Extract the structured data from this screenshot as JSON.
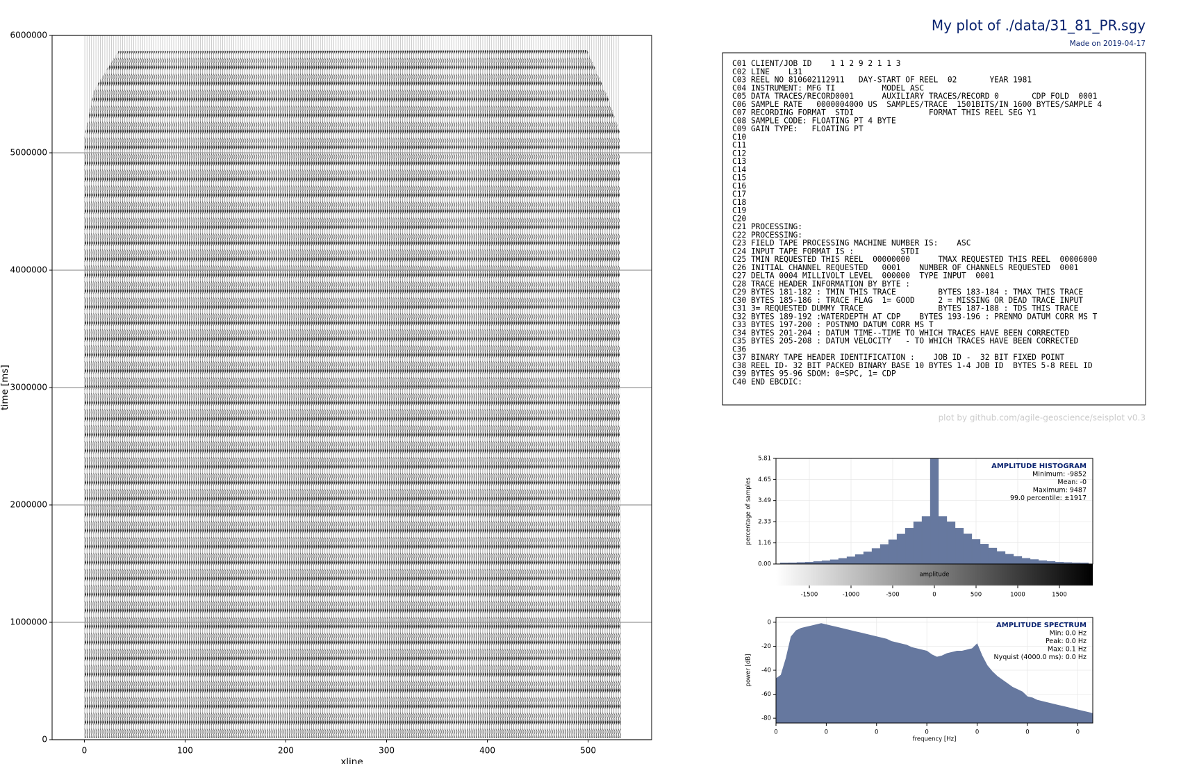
{
  "title": "My plot of ./data/31_81_PR.sgy",
  "subtitle": "Made on 2019-04-17",
  "credit": "plot by github.com/agile-geoscience/seisplot v0.3",
  "header_lines": [
    "C01 CLIENT/JOB ID    1 1 2 9 2 1 1 3",
    "C02 LINE    L31",
    "C03 REEL NO 810602112911   DAY-START OF REEL  02       YEAR 1981",
    "C04 INSTRUMENT: MFG TI          MODEL ASC",
    "C05 DATA TRACES/RECORD0001      AUXILIARY TRACES/RECORD 0       CDP FOLD  0001",
    "C06 SAMPLE RATE   0000004000 US  SAMPLES/TRACE  1501BITS/IN 1600 BYTES/SAMPLE 4",
    "C07 RECORDING FORMAT  STDI                FORMAT THIS REEL SEG Y1",
    "C08 SAMPLE CODE: FLOATING PT 4 BYTE",
    "C09 GAIN TYPE:   FLOATING PT",
    "C10",
    "C11",
    "C12",
    "C13",
    "C14",
    "C15",
    "C16",
    "C17",
    "C18",
    "C19",
    "C20",
    "C21 PROCESSING:",
    "C22 PROCESSING:",
    "C23 FIELD TAPE PROCESSING MACHINE NUMBER IS:    ASC",
    "C24 INPUT TAPE FORMAT IS :          STDI",
    "C25 TMIN REQUESTED THIS REEL  00000000      TMAX REQUESTED THIS REEL  00006000",
    "C26 INITIAL CHANNEL REQUESTED   0001    NUMBER OF CHANNELS REQUESTED  0001",
    "C27 DELTA 0004 MILLIVOLT LEVEL  000000  TYPE INPUT  0001",
    "C28 TRACE HEADER INFORMATION BY BYTE :",
    "C29 BYTES 181-182 : TMIN THIS TRACE         BYTES 183-184 : TMAX THIS TRACE",
    "C30 BYTES 185-186 : TRACE FLAG  1= GOOD     2 = MISSING OR DEAD TRACE INPUT",
    "C31 3= REQUESTED DUMMY TRACE                BYTES 187-188 : TDS THIS TRACE",
    "C32 BYTES 189-192 :WATERDEPTH AT CDP    BYTES 193-196 : PRENMO DATUM CORR MS T",
    "C33 BYTES 197-200 : POSTNMO DATUM CORR MS T",
    "C34 BYTES 201-204 : DATUM TIME--TIME TO WHICH TRACES HAVE BEEN CORRECTED",
    "C35 BYTES 205-208 : DATUM VELOCITY   - TO WHICH TRACES HAVE BEEN CORRECTED",
    "C36",
    "C37 BINARY TAPE HEADER IDENTIFICATION :    JOB ID -  32 BIT FIXED POINT",
    "C38 REEL ID- 32 BIT PACKED BINARY BASE 10 BYTES 1-4 JOB ID  BYTES 5-8 REEL ID",
    "C39 BYTES 95-96 SDOM: 0=SPC, 1= CDP",
    "C40 END EBCDIC:"
  ],
  "chart_data": [
    {
      "type": "seismic",
      "xlabel": "xline",
      "ylabel": "time [ms]",
      "xlim": [
        -32,
        563
      ],
      "xticks": [
        0,
        100,
        200,
        300,
        400,
        500
      ],
      "ylim": [
        0,
        6000000
      ],
      "yticks": [
        0,
        1000000,
        2000000,
        3000000,
        4000000,
        5000000,
        6000000
      ],
      "grid": true
    },
    {
      "type": "histogram",
      "title": "AMPLITUDE HISTOGRAM",
      "annotations": [
        "Minimum: -9852",
        "Mean:   -0",
        "Maximum: 9487",
        "99.0 percentile: ±1917"
      ],
      "ylabel": "percentage of samples",
      "colorbar_label": "amplitude",
      "color": "#66789f",
      "xlim": [
        -1900,
        1900
      ],
      "xticks": [
        -1500,
        -1000,
        -500,
        0,
        500,
        1000,
        1500
      ],
      "ylim": [
        0,
        5.81
      ],
      "yticks": [
        {
          "value": 0,
          "label": "0.00"
        },
        {
          "value": 1.16,
          "label": "1.16"
        },
        {
          "value": 2.33,
          "label": "2.33"
        },
        {
          "value": 3.49,
          "label": "3.49"
        },
        {
          "value": 4.65,
          "label": "4.65"
        },
        {
          "value": 5.81,
          "label": "5.81"
        }
      ],
      "grid": true,
      "bins": [
        -1850,
        -1750,
        -1650,
        -1550,
        -1450,
        -1350,
        -1250,
        -1150,
        -1050,
        -950,
        -850,
        -750,
        -650,
        -550,
        -450,
        -350,
        -250,
        -150,
        -50,
        50,
        150,
        250,
        350,
        450,
        550,
        650,
        750,
        850,
        950,
        1050,
        1150,
        1250,
        1350,
        1450,
        1550,
        1650,
        1750,
        1850
      ],
      "values": [
        0.06,
        0.07,
        0.09,
        0.11,
        0.14,
        0.18,
        0.24,
        0.31,
        0.4,
        0.52,
        0.67,
        0.86,
        1.08,
        1.34,
        1.65,
        1.98,
        2.33,
        2.62,
        5.81,
        2.62,
        2.33,
        1.98,
        1.66,
        1.36,
        1.1,
        0.88,
        0.69,
        0.54,
        0.42,
        0.32,
        0.25,
        0.19,
        0.15,
        0.11,
        0.09,
        0.07,
        0.06
      ]
    },
    {
      "type": "area",
      "title": "AMPLITUDE SPECTRUM",
      "annotations": [
        "Min: 0.0 Hz",
        "Peak: 0.0 Hz",
        "Max: 0.1 Hz",
        "Nyquist (4000.0 ms): 0.0 Hz"
      ],
      "xlabel": "frequency [Hz]",
      "ylabel": "power [dB]",
      "color": "#66789f",
      "xlim": [
        0,
        63
      ],
      "xticks": [
        0,
        {
          "value": 10,
          "label": "0"
        },
        {
          "value": 20,
          "label": "0"
        },
        {
          "value": 30,
          "label": "0"
        },
        {
          "value": 40,
          "label": "0"
        },
        {
          "value": 50,
          "label": "0"
        },
        {
          "value": 60,
          "label": "0"
        }
      ],
      "ylim": [
        -84,
        4
      ],
      "yticks": [
        0,
        -20,
        -40,
        -60,
        -80
      ],
      "grid": true,
      "x": [
        0,
        1,
        2,
        3,
        4,
        5,
        6,
        7,
        8,
        9,
        10,
        11,
        12,
        13,
        14,
        15,
        16,
        17,
        18,
        19,
        20,
        21,
        22,
        23,
        24,
        25,
        26,
        27,
        28,
        29,
        30,
        31,
        32,
        33,
        34,
        35,
        36,
        37,
        38,
        39,
        40,
        41,
        42,
        43,
        44,
        45,
        46,
        47,
        48,
        49,
        50,
        51,
        52,
        53,
        54,
        55,
        56,
        57,
        58,
        59,
        60,
        61,
        62,
        63
      ],
      "values": [
        -47,
        -44,
        -30,
        -12,
        -7,
        -5,
        -4,
        -3,
        -2,
        -1,
        -2,
        -3,
        -4,
        -5,
        -6,
        -7,
        -8,
        -9,
        -10,
        -11,
        -12,
        -13,
        -14,
        -16,
        -17,
        -18,
        -19,
        -21,
        -22,
        -23,
        -24,
        -27,
        -29,
        -28,
        -26,
        -25,
        -24,
        -24,
        -23,
        -22,
        -18,
        -28,
        -36,
        -41,
        -45,
        -48,
        -51,
        -54,
        -56,
        -58,
        -62,
        -63,
        -65,
        -66,
        -67,
        -68,
        -69,
        -70,
        -71,
        -72,
        -73,
        -74,
        -75,
        -76
      ]
    }
  ]
}
